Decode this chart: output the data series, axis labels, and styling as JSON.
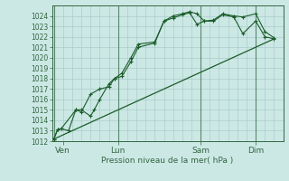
{
  "background_color": "#cce8e4",
  "grid_color": "#aacccc",
  "line_color": "#1a5c2a",
  "spine_color": "#336644",
  "title": "Pression niveau de la mer( hPa )",
  "ylim": [
    1012,
    1025
  ],
  "yticks": [
    1012,
    1013,
    1014,
    1015,
    1016,
    1017,
    1018,
    1019,
    1020,
    1021,
    1022,
    1023,
    1024
  ],
  "day_labels": [
    "Ven",
    "Lun",
    "Sam",
    "Dim"
  ],
  "day_positions": [
    0.5,
    3.5,
    8.0,
    11.0
  ],
  "vline_positions": [
    0,
    0.5,
    1,
    1.5,
    2,
    2.5,
    3,
    3.5,
    4,
    4.5,
    5,
    5.5,
    6,
    6.5,
    7,
    7.5,
    8,
    8.5,
    9,
    9.5,
    10,
    10.5,
    11,
    11.5,
    12
  ],
  "series1_x": [
    0,
    0.2,
    0.4,
    0.8,
    1.2,
    1.5,
    2.0,
    2.2,
    2.5,
    3.0,
    3.3,
    3.7,
    4.2,
    4.6,
    5.5,
    6.0,
    6.5,
    7.0,
    7.4,
    7.8,
    8.2,
    8.7,
    9.2,
    9.8,
    10.3,
    11.0,
    11.5,
    12.0
  ],
  "series1_y": [
    1012.2,
    1013.1,
    1013.2,
    1013.0,
    1015.0,
    1015.0,
    1014.4,
    1015.0,
    1016.0,
    1017.5,
    1018.0,
    1018.2,
    1019.6,
    1021.0,
    1021.4,
    1023.5,
    1024.0,
    1024.2,
    1024.4,
    1024.2,
    1023.5,
    1023.6,
    1024.2,
    1024.0,
    1023.9,
    1024.2,
    1022.5,
    1021.9
  ],
  "series2_x": [
    0,
    0.2,
    0.4,
    1.2,
    1.5,
    2.0,
    2.5,
    3.0,
    3.3,
    3.7,
    4.2,
    4.6,
    5.5,
    6.0,
    6.5,
    7.0,
    7.4,
    7.8,
    8.2,
    8.7,
    9.2,
    9.8,
    10.3,
    11.0,
    11.5,
    12.0
  ],
  "series2_y": [
    1012.2,
    1013.1,
    1013.2,
    1015.0,
    1014.8,
    1016.5,
    1017.0,
    1017.2,
    1018.0,
    1018.5,
    1020.0,
    1021.3,
    1021.5,
    1023.5,
    1023.8,
    1024.1,
    1024.3,
    1023.2,
    1023.5,
    1023.5,
    1024.1,
    1023.9,
    1022.3,
    1023.5,
    1022.0,
    1021.8
  ],
  "trend_x": [
    0,
    12.0
  ],
  "trend_y": [
    1012.2,
    1021.8
  ],
  "xlim": [
    -0.1,
    12.5
  ]
}
